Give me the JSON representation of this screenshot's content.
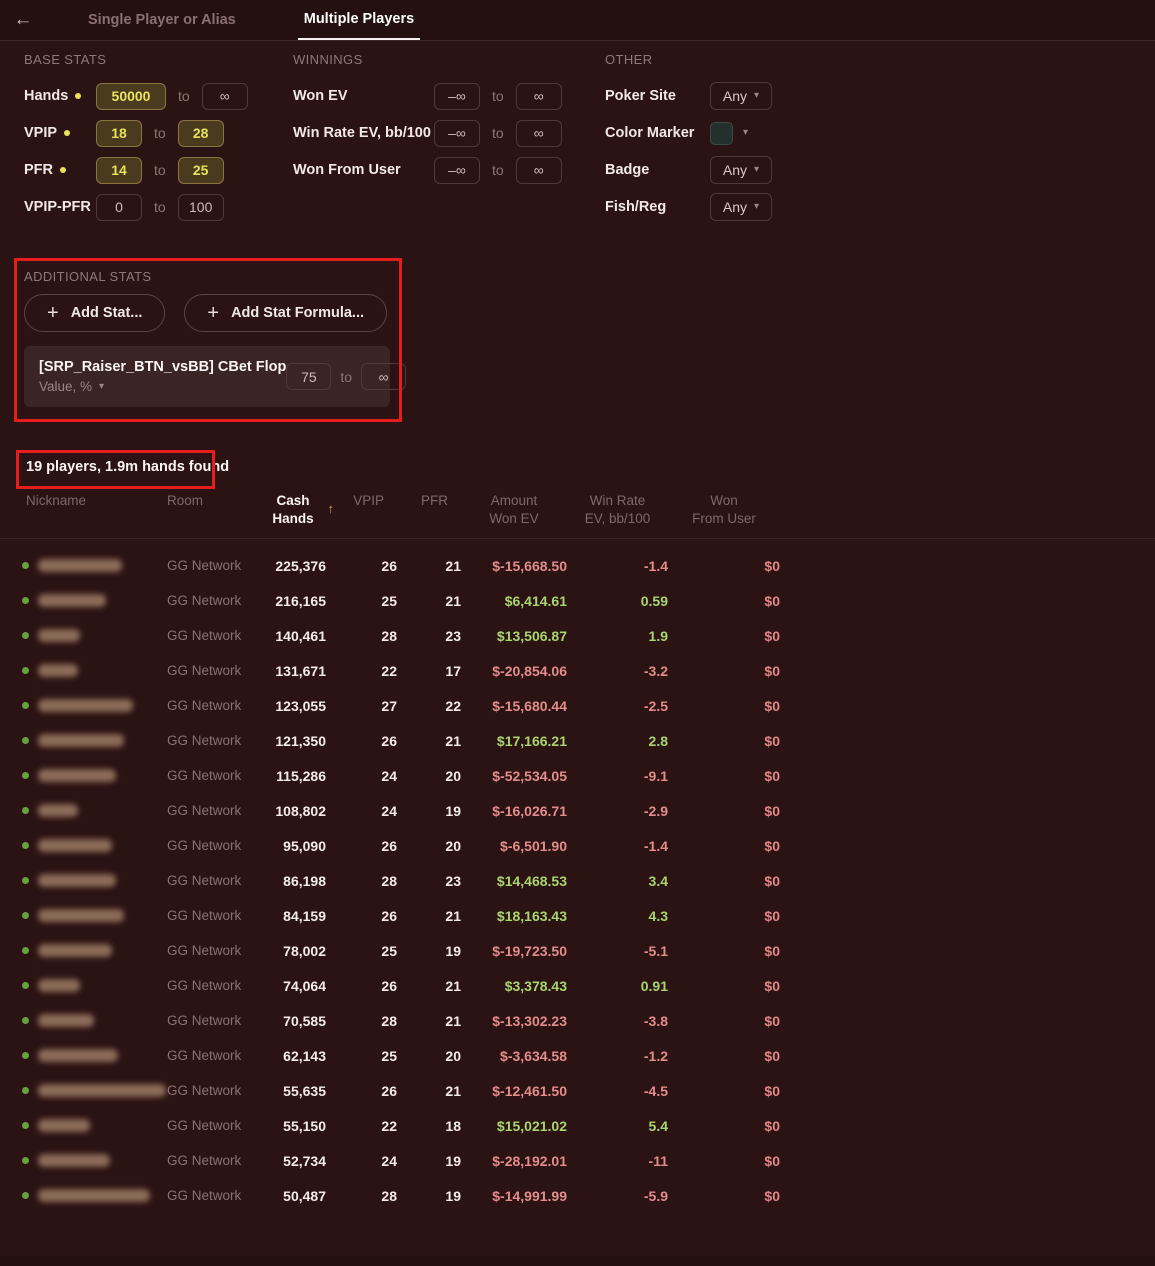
{
  "icons": {
    "back": "←",
    "plus": "+",
    "caret": "▾",
    "sort_up": "↑"
  },
  "topbar": {
    "tabs": [
      {
        "label": "Single Player or Alias",
        "active": false
      },
      {
        "label": "Multiple Players",
        "active": true
      }
    ]
  },
  "filters": {
    "base_stats": {
      "title": "BASE STATS",
      "rows": [
        {
          "label": "Hands",
          "flagged": true,
          "from": "50000",
          "to": "∞",
          "from_filled": true,
          "to_filled": false
        },
        {
          "label": "VPIP",
          "flagged": true,
          "from": "18",
          "to": "28",
          "from_filled": true,
          "to_filled": true
        },
        {
          "label": "PFR",
          "flagged": true,
          "from": "14",
          "to": "25",
          "from_filled": true,
          "to_filled": true
        },
        {
          "label": "VPIP-PFR",
          "flagged": false,
          "from": "0",
          "to": "100",
          "from_filled": false,
          "to_filled": false
        }
      ]
    },
    "winnings": {
      "title": "WINNINGS",
      "rows": [
        {
          "label": "Won EV",
          "from": "–∞",
          "to": "∞"
        },
        {
          "label": "Win Rate EV, bb/100",
          "from": "–∞",
          "to": "∞"
        },
        {
          "label": "Won From User",
          "from": "–∞",
          "to": "∞"
        }
      ]
    },
    "other": {
      "title": "OTHER",
      "rows": [
        {
          "label": "Poker Site",
          "type": "dropdown",
          "value": "Any"
        },
        {
          "label": "Color Marker",
          "type": "swatch",
          "swatch_color": "#23302c"
        },
        {
          "label": "Badge",
          "type": "dropdown",
          "value": "Any"
        },
        {
          "label": "Fish/Reg",
          "type": "dropdown",
          "value": "Any"
        }
      ]
    },
    "additional_stats": {
      "title": "ADDITIONAL STATS",
      "add_stat_label": "Add Stat...",
      "add_formula_label": "Add Stat Formula...",
      "stat": {
        "name": "[SRP_Raiser_BTN_vsBB] CBet Flop",
        "from": "75",
        "to": "∞",
        "unit": "Value, %"
      }
    }
  },
  "results": {
    "summary": "19 players, 1.9m hands found"
  },
  "table": {
    "headers": {
      "nickname": "Nickname",
      "room": "Room",
      "cash_line1": "Cash",
      "cash_line2": "Hands",
      "vpip": "VPIP",
      "pfr": "PFR",
      "amount_line1": "Amount",
      "amount_line2": "Won EV",
      "winrate_line1": "Win Rate",
      "winrate_line2": "EV, bb/100",
      "won_line1": "Won",
      "won_line2": "From User"
    },
    "rows": [
      {
        "room": "GG Network",
        "hands": "225,376",
        "vpip": "26",
        "pfr": "21",
        "amount": "$-15,668.50",
        "winrate": "-1.4",
        "won": "$0",
        "name_w": 84
      },
      {
        "room": "GG Network",
        "hands": "216,165",
        "vpip": "25",
        "pfr": "21",
        "amount": "$6,414.61",
        "winrate": "0.59",
        "won": "$0",
        "name_w": 68
      },
      {
        "room": "GG Network",
        "hands": "140,461",
        "vpip": "28",
        "pfr": "23",
        "amount": "$13,506.87",
        "winrate": "1.9",
        "won": "$0",
        "name_w": 42
      },
      {
        "room": "GG Network",
        "hands": "131,671",
        "vpip": "22",
        "pfr": "17",
        "amount": "$-20,854.06",
        "winrate": "-3.2",
        "won": "$0",
        "name_w": 40
      },
      {
        "room": "GG Network",
        "hands": "123,055",
        "vpip": "27",
        "pfr": "22",
        "amount": "$-15,680.44",
        "winrate": "-2.5",
        "won": "$0",
        "name_w": 95
      },
      {
        "room": "GG Network",
        "hands": "121,350",
        "vpip": "26",
        "pfr": "21",
        "amount": "$17,166.21",
        "winrate": "2.8",
        "won": "$0",
        "name_w": 86
      },
      {
        "room": "GG Network",
        "hands": "115,286",
        "vpip": "24",
        "pfr": "20",
        "amount": "$-52,534.05",
        "winrate": "-9.1",
        "won": "$0",
        "name_w": 78
      },
      {
        "room": "GG Network",
        "hands": "108,802",
        "vpip": "24",
        "pfr": "19",
        "amount": "$-16,026.71",
        "winrate": "-2.9",
        "won": "$0",
        "name_w": 40
      },
      {
        "room": "GG Network",
        "hands": "95,090",
        "vpip": "26",
        "pfr": "20",
        "amount": "$-6,501.90",
        "winrate": "-1.4",
        "won": "$0",
        "name_w": 74
      },
      {
        "room": "GG Network",
        "hands": "86,198",
        "vpip": "28",
        "pfr": "23",
        "amount": "$14,468.53",
        "winrate": "3.4",
        "won": "$0",
        "name_w": 78
      },
      {
        "room": "GG Network",
        "hands": "84,159",
        "vpip": "26",
        "pfr": "21",
        "amount": "$18,163.43",
        "winrate": "4.3",
        "won": "$0",
        "name_w": 86
      },
      {
        "room": "GG Network",
        "hands": "78,002",
        "vpip": "25",
        "pfr": "19",
        "amount": "$-19,723.50",
        "winrate": "-5.1",
        "won": "$0",
        "name_w": 74
      },
      {
        "room": "GG Network",
        "hands": "74,064",
        "vpip": "26",
        "pfr": "21",
        "amount": "$3,378.43",
        "winrate": "0.91",
        "won": "$0",
        "name_w": 42
      },
      {
        "room": "GG Network",
        "hands": "70,585",
        "vpip": "28",
        "pfr": "21",
        "amount": "$-13,302.23",
        "winrate": "-3.8",
        "won": "$0",
        "name_w": 56
      },
      {
        "room": "GG Network",
        "hands": "62,143",
        "vpip": "25",
        "pfr": "20",
        "amount": "$-3,634.58",
        "winrate": "-1.2",
        "won": "$0",
        "name_w": 80
      },
      {
        "room": "GG Network",
        "hands": "55,635",
        "vpip": "26",
        "pfr": "21",
        "amount": "$-12,461.50",
        "winrate": "-4.5",
        "won": "$0",
        "name_w": 128
      },
      {
        "room": "GG Network",
        "hands": "55,150",
        "vpip": "22",
        "pfr": "18",
        "amount": "$15,021.02",
        "winrate": "5.4",
        "won": "$0",
        "name_w": 52
      },
      {
        "room": "GG Network",
        "hands": "52,734",
        "vpip": "24",
        "pfr": "19",
        "amount": "$-28,192.01",
        "winrate": "-11",
        "won": "$0",
        "name_w": 72
      },
      {
        "room": "GG Network",
        "hands": "50,487",
        "vpip": "28",
        "pfr": "19",
        "amount": "$-14,991.99",
        "winrate": "-5.9",
        "won": "$0",
        "name_w": 112
      }
    ]
  },
  "colors": {
    "positive": "#a9d56f",
    "negative": "#e38c8c",
    "won_zero": "#e08888",
    "accent_yellow": "#eae25a",
    "annotation_red": "#e51d1d",
    "row_dot_green": "#66a23c"
  }
}
